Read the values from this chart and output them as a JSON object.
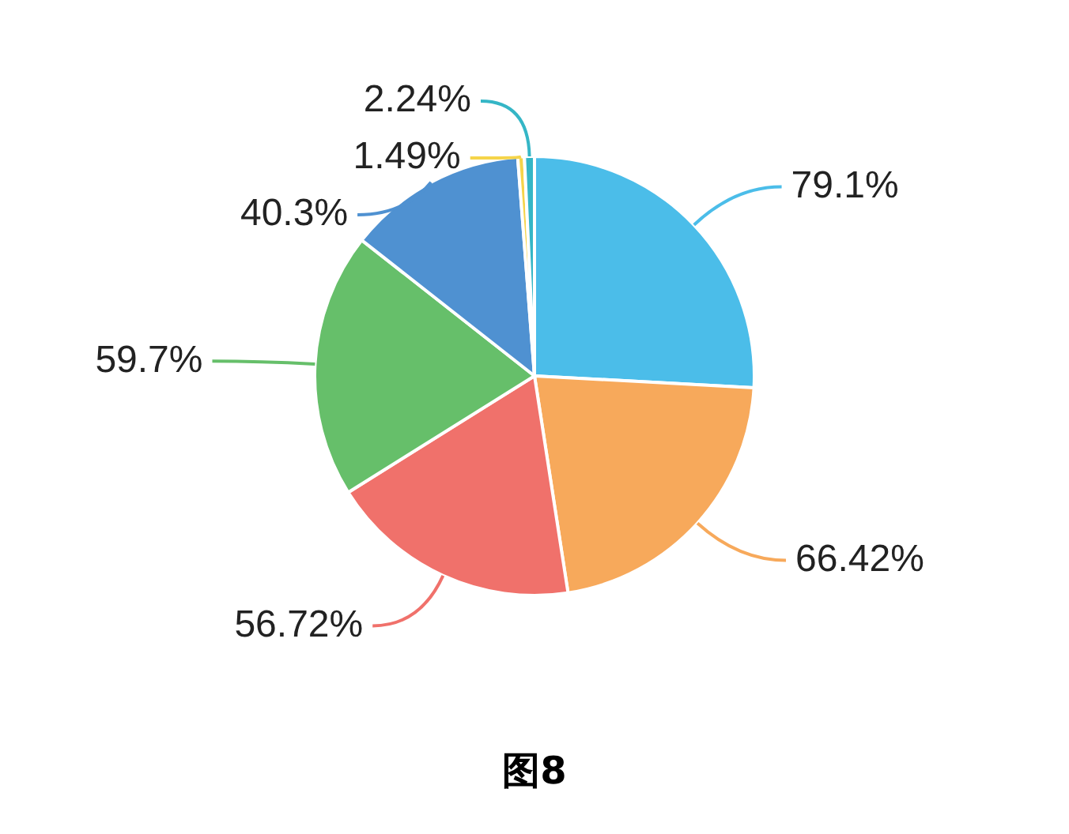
{
  "chart_data": {
    "type": "pie",
    "categories": [
      null,
      null,
      null,
      null,
      null,
      null,
      null
    ],
    "values": [
      79.1,
      66.42,
      56.72,
      59.7,
      40.3,
      1.49,
      2.24
    ],
    "colors": [
      "#4bbde9",
      "#f7a95b",
      "#f0716b",
      "#66bf6a",
      "#4f91d1",
      "#f5d44a",
      "#35b6c6"
    ],
    "value_labels": [
      "79.1%",
      "66.42%",
      "56.72%",
      "59.7%",
      "40.3%",
      "1.49%",
      "2.24%"
    ],
    "legend": false,
    "annotations": [
      "图8"
    ]
  }
}
